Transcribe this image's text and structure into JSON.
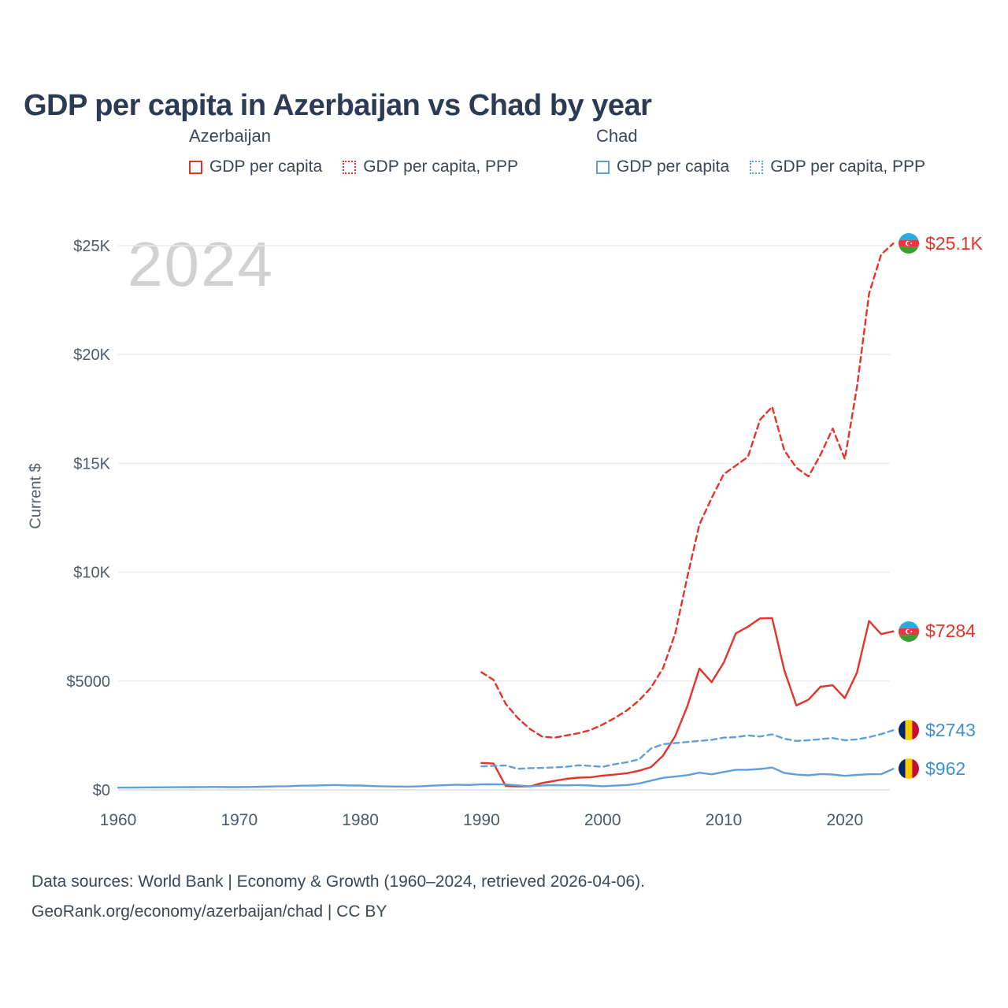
{
  "title": "GDP per capita in Azerbaijan vs Chad by year",
  "watermark": "2024",
  "legend": {
    "groups": [
      {
        "label": "Azerbaijan",
        "color": "#e5332a",
        "items": [
          {
            "label": "GDP per capita",
            "style": "solid",
            "color": "#e5332a"
          },
          {
            "label": "GDP per capita, PPP",
            "style": "dotted",
            "color": "#e5332a"
          }
        ]
      },
      {
        "label": "Chad",
        "color": "#5f9fdc",
        "items": [
          {
            "label": "GDP per capita",
            "style": "solid",
            "color": "#5f9fdc"
          },
          {
            "label": "GDP per capita, PPP",
            "style": "dotted",
            "color": "#5f9fdc"
          }
        ]
      }
    ]
  },
  "y_axis": {
    "label": "Current $",
    "ticks": [
      {
        "value": 0,
        "label": "$0"
      },
      {
        "value": 5000,
        "label": "$5000"
      },
      {
        "value": 10000,
        "label": "$10K"
      },
      {
        "value": 15000,
        "label": "$15K"
      },
      {
        "value": 20000,
        "label": "$20K"
      },
      {
        "value": 25000,
        "label": "$25K"
      }
    ]
  },
  "x_axis": {
    "ticks": [
      1960,
      1970,
      1980,
      1990,
      2000,
      2010,
      2020
    ]
  },
  "end_labels": [
    {
      "flag": "azerbaijan",
      "value": "$25.1K",
      "color": "#e5332a",
      "y_value": 25100
    },
    {
      "flag": "azerbaijan",
      "value": "$7284",
      "color": "#e5332a",
      "y_value": 7284
    },
    {
      "flag": "chad",
      "value": "$2743",
      "color": "#3f8fd6",
      "y_value": 2743
    },
    {
      "flag": "chad",
      "value": "$962",
      "color": "#3f8fd6",
      "y_value": 962
    }
  ],
  "footer": {
    "line1": "Data sources: World Bank | Economy & Growth (1960–2024, retrieved 2026-04-06).",
    "line2": "GeoRank.org/economy/azerbaijan/chad | CC BY"
  },
  "chart_data": {
    "type": "line",
    "title": "GDP per capita in Azerbaijan vs Chad by year",
    "xlabel": "",
    "ylabel": "Current $",
    "ylim": [
      0,
      26000
    ],
    "xlim": [
      1958,
      2026
    ],
    "grid": true,
    "legend_position": "top",
    "series": [
      {
        "name": "Azerbaijan GDP per capita",
        "color": "#e5332a",
        "dash": "solid",
        "start_year": 1990,
        "values": [
          1237,
          1209,
          181,
          156,
          158,
          314,
          409,
          506,
          559,
          574,
          655,
          703,
          763,
          880,
          1045,
          1578,
          2473,
          3851,
          5575,
          4950,
          5843,
          7190,
          7496,
          7875,
          7891,
          5500,
          3880,
          4147,
          4739,
          4805,
          4214,
          5384,
          7762,
          7155,
          7284
        ]
      },
      {
        "name": "Azerbaijan GDP per capita, PPP",
        "color": "#e5332a",
        "dash": "dashed",
        "start_year": 1990,
        "values": [
          5400,
          5050,
          3950,
          3300,
          2800,
          2450,
          2400,
          2500,
          2600,
          2750,
          3000,
          3300,
          3650,
          4100,
          4700,
          5600,
          7200,
          9800,
          12200,
          13400,
          14500,
          14900,
          15300,
          17000,
          17600,
          15600,
          14800,
          14400,
          15400,
          16600,
          15200,
          18500,
          22800,
          24600,
          25100
        ]
      },
      {
        "name": "Chad GDP per capita",
        "color": "#5f9fdc",
        "dash": "solid",
        "start_year": 1960,
        "values": [
          101,
          106,
          111,
          115,
          119,
          124,
          126,
          130,
          133,
          126,
          128,
          133,
          143,
          158,
          166,
          193,
          196,
          211,
          225,
          202,
          198,
          173,
          160,
          152,
          147,
          167,
          196,
          213,
          237,
          225,
          258,
          253,
          248,
          208,
          158,
          204,
          218,
          208,
          222,
          198,
          166,
          197,
          222,
          292,
          422,
          555,
          611,
          675,
          789,
          713,
          822,
          920,
          921,
          958,
          1025,
          777,
          703,
          670,
          727,
          705,
          643,
          686,
          717,
          719,
          962
        ]
      },
      {
        "name": "Chad GDP per capita, PPP",
        "color": "#5f9fdc",
        "dash": "dashed",
        "start_year": 1990,
        "values": [
          1080,
          1100,
          1120,
          970,
          1000,
          1010,
          1030,
          1060,
          1130,
          1100,
          1060,
          1180,
          1270,
          1400,
          1900,
          2100,
          2150,
          2200,
          2250,
          2300,
          2400,
          2420,
          2500,
          2450,
          2550,
          2350,
          2250,
          2280,
          2330,
          2380,
          2280,
          2320,
          2420,
          2560,
          2743
        ]
      }
    ]
  }
}
